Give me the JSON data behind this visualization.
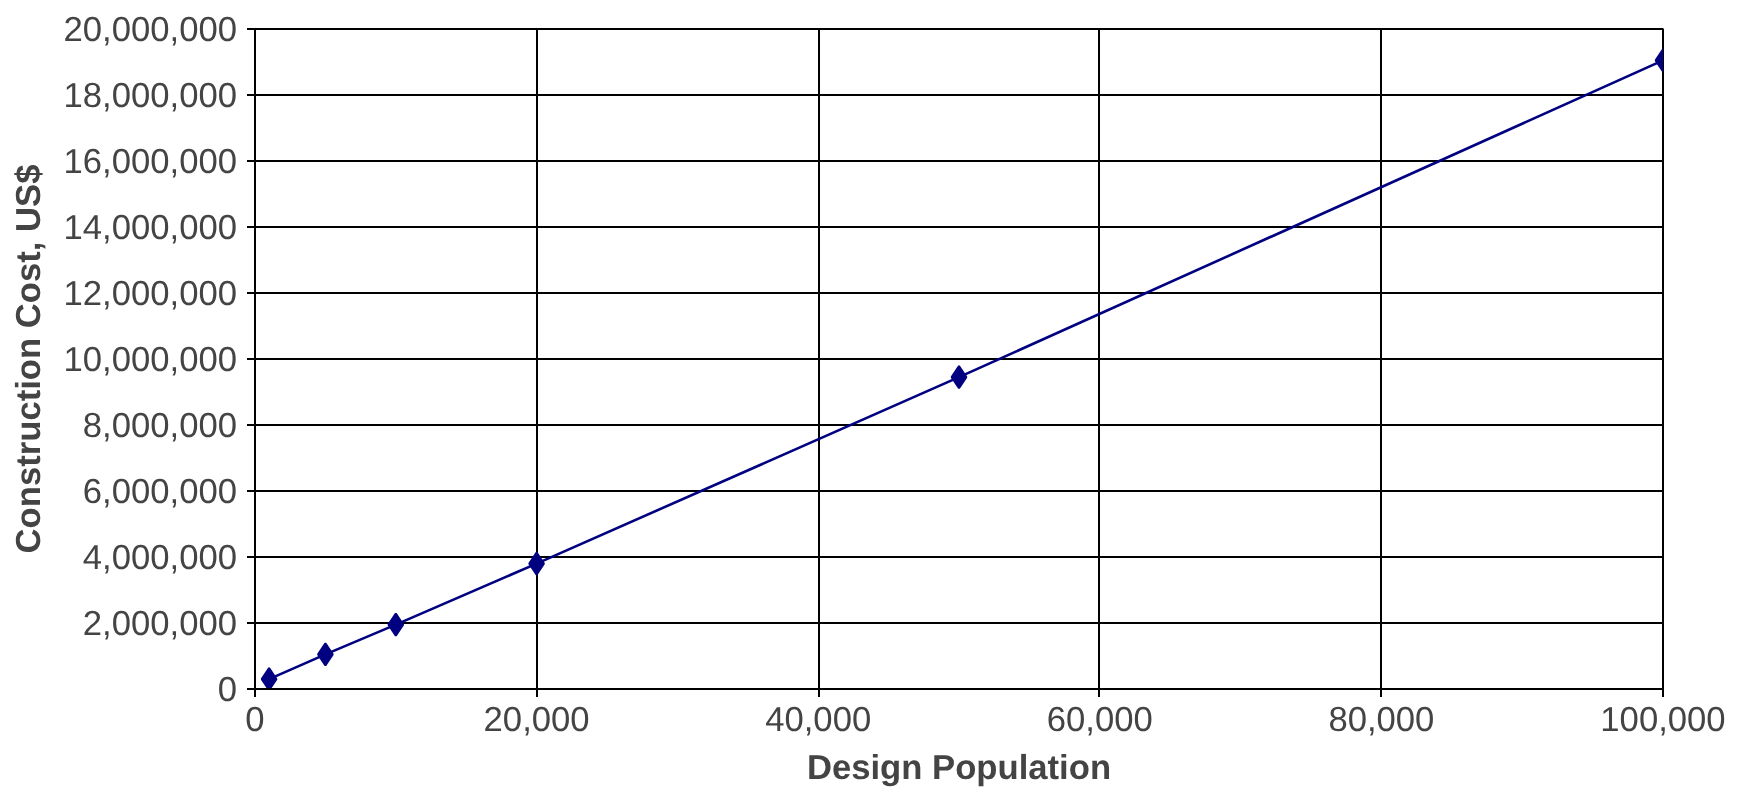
{
  "chart_data": {
    "type": "line",
    "xlabel": "Design Population",
    "ylabel": "Construction Cost, US$",
    "x": [
      1000,
      5000,
      10000,
      20000,
      50000,
      100000
    ],
    "series": [
      {
        "color": "#000080",
        "values": [
          300000,
          1050000,
          1950000,
          3800000,
          9450000,
          19050000
        ]
      }
    ],
    "xlim": [
      0,
      100000
    ],
    "xticks": [
      {
        "value": 0,
        "label": "0"
      },
      {
        "value": 20000,
        "label": "20,000"
      },
      {
        "value": 40000,
        "label": "40,000"
      },
      {
        "value": 60000,
        "label": "60,000"
      },
      {
        "value": 80000,
        "label": "80,000"
      },
      {
        "value": 100000,
        "label": "100,000"
      }
    ],
    "ylim": [
      0,
      20000000
    ],
    "yticks": [
      {
        "value": 0,
        "label": "0"
      },
      {
        "value": 2000000,
        "label": "2,000,000"
      },
      {
        "value": 4000000,
        "label": "4,000,000"
      },
      {
        "value": 6000000,
        "label": "6,000,000"
      },
      {
        "value": 8000000,
        "label": "8,000,000"
      },
      {
        "value": 10000000,
        "label": "10,000,000"
      },
      {
        "value": 12000000,
        "label": "12,000,000"
      },
      {
        "value": 14000000,
        "label": "14,000,000"
      },
      {
        "value": 16000000,
        "label": "16,000,000"
      },
      {
        "value": 18000000,
        "label": "18,000,000"
      },
      {
        "value": 20000000,
        "label": "20,000,000"
      }
    ],
    "grid": true,
    "marker": "diamond",
    "line_style": "solid"
  }
}
